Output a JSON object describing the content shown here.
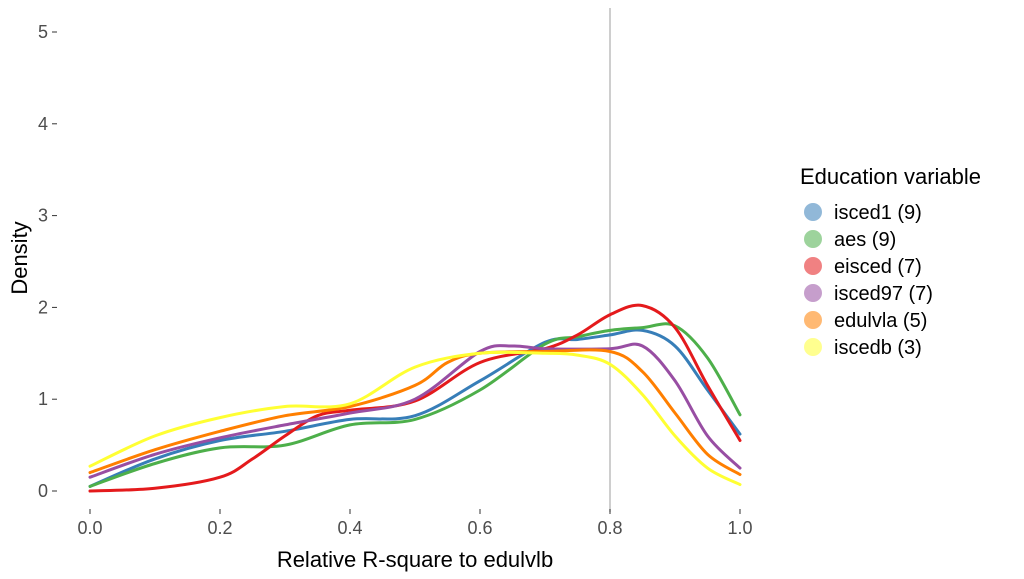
{
  "chart_data": {
    "type": "line",
    "subtype": "density",
    "xlabel": "Relative R-square to edulvlb",
    "ylabel": "Density",
    "xlim": [
      0.0,
      1.0
    ],
    "ylim": [
      0,
      5
    ],
    "x_ticks": [
      "0.0",
      "0.2",
      "0.4",
      "0.6",
      "0.8",
      "1.0"
    ],
    "y_ticks": [
      "0",
      "1",
      "2",
      "3",
      "4",
      "5"
    ],
    "grid": false,
    "legend_position": "right",
    "reference_line": {
      "x": 0.8,
      "color": "#bdbdbd"
    },
    "legend_title": "Education variable",
    "series": [
      {
        "name": "isced1 (9)",
        "color": "#377eb8",
        "x": [
          0.0,
          0.1,
          0.2,
          0.3,
          0.4,
          0.5,
          0.6,
          0.7,
          0.75,
          0.8,
          0.85,
          0.9,
          0.95,
          1.0
        ],
        "y": [
          0.05,
          0.35,
          0.55,
          0.65,
          0.78,
          0.82,
          1.2,
          1.62,
          1.65,
          1.7,
          1.75,
          1.58,
          1.1,
          0.62
        ]
      },
      {
        "name": "aes (9)",
        "color": "#4daf4a",
        "x": [
          0.0,
          0.1,
          0.2,
          0.3,
          0.4,
          0.5,
          0.6,
          0.7,
          0.75,
          0.8,
          0.85,
          0.9,
          0.95,
          1.0
        ],
        "y": [
          0.05,
          0.3,
          0.47,
          0.5,
          0.72,
          0.78,
          1.1,
          1.6,
          1.68,
          1.75,
          1.78,
          1.8,
          1.45,
          0.83
        ]
      },
      {
        "name": "eisced (7)",
        "color": "#e41a1c",
        "x": [
          0.0,
          0.1,
          0.2,
          0.25,
          0.3,
          0.35,
          0.4,
          0.5,
          0.6,
          0.7,
          0.75,
          0.8,
          0.85,
          0.9,
          0.95,
          1.0
        ],
        "y": [
          0.0,
          0.03,
          0.15,
          0.35,
          0.6,
          0.82,
          0.88,
          0.98,
          1.4,
          1.55,
          1.7,
          1.92,
          2.02,
          1.78,
          1.15,
          0.55
        ]
      },
      {
        "name": "isced97 (7)",
        "color": "#984ea3",
        "x": [
          0.0,
          0.1,
          0.2,
          0.3,
          0.4,
          0.5,
          0.6,
          0.65,
          0.7,
          0.8,
          0.85,
          0.9,
          0.95,
          1.0
        ],
        "y": [
          0.15,
          0.4,
          0.58,
          0.72,
          0.85,
          1.0,
          1.52,
          1.58,
          1.55,
          1.55,
          1.58,
          1.2,
          0.6,
          0.25
        ]
      },
      {
        "name": "edulvla (5)",
        "color": "#ff7f00",
        "x": [
          0.0,
          0.1,
          0.2,
          0.3,
          0.4,
          0.5,
          0.55,
          0.6,
          0.7,
          0.8,
          0.85,
          0.9,
          0.95,
          1.0
        ],
        "y": [
          0.2,
          0.45,
          0.65,
          0.82,
          0.92,
          1.15,
          1.4,
          1.5,
          1.52,
          1.52,
          1.3,
          0.85,
          0.4,
          0.18
        ]
      },
      {
        "name": "iscedb (3)",
        "color": "#ffff33",
        "x": [
          0.0,
          0.1,
          0.2,
          0.3,
          0.4,
          0.5,
          0.6,
          0.7,
          0.75,
          0.8,
          0.85,
          0.9,
          0.95,
          1.0
        ],
        "y": [
          0.27,
          0.6,
          0.8,
          0.92,
          0.95,
          1.35,
          1.5,
          1.5,
          1.48,
          1.38,
          1.05,
          0.6,
          0.25,
          0.07
        ]
      }
    ]
  }
}
